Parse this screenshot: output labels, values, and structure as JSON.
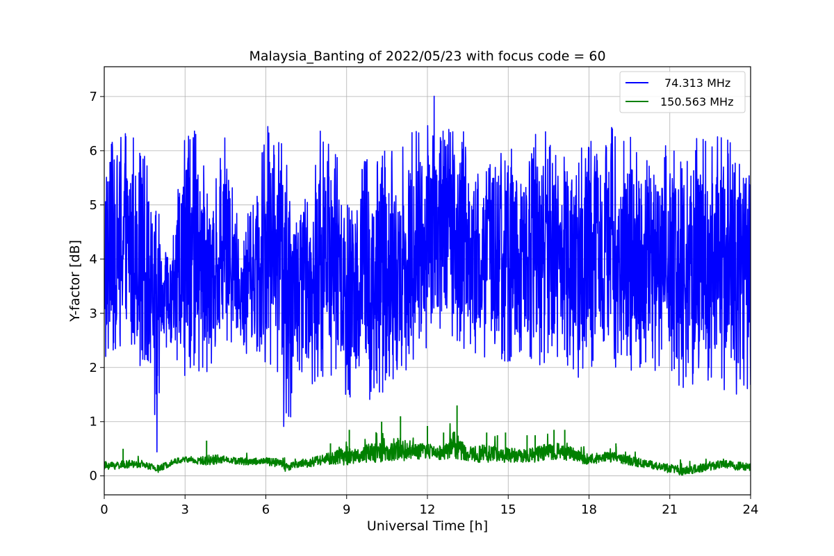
{
  "chart_data": {
    "type": "line",
    "title": "Malaysia_Banting of 2022/05/23 with focus code = 60",
    "xlabel": "Universal Time [h]",
    "ylabel": "Y-factor [dB]",
    "xlim": [
      0,
      24
    ],
    "ylim": [
      -0.35,
      7.55
    ],
    "xticks": [
      0,
      3,
      6,
      9,
      12,
      15,
      18,
      21,
      24
    ],
    "yticks": [
      0,
      1,
      2,
      3,
      4,
      5,
      6,
      7
    ],
    "grid": true,
    "legend_position": "top-right",
    "series": [
      {
        "name": "74.313 MHz",
        "color": "#0000ff",
        "envelope": {
          "x": [
            0,
            0.5,
            1.0,
            1.5,
            1.8,
            1.95,
            2.1,
            2.5,
            3.0,
            3.5,
            3.9,
            4.5,
            5.0,
            5.5,
            6.0,
            6.5,
            6.7,
            6.9,
            7.0,
            7.5,
            8.0,
            8.5,
            9.0,
            9.5,
            10.0,
            10.5,
            11.0,
            11.5,
            12.0,
            12.3,
            12.5,
            13.0,
            13.5,
            14.0,
            14.5,
            15.0,
            15.5,
            16.0,
            16.5,
            17.0,
            17.5,
            18.0,
            18.5,
            19.0,
            19.5,
            20.0,
            20.5,
            21.0,
            21.5,
            22.0,
            22.5,
            23.0,
            23.5,
            24.0
          ],
          "min": [
            2.0,
            2.3,
            2.1,
            2.0,
            1.6,
            0.0,
            2.4,
            2.1,
            1.8,
            1.9,
            1.8,
            2.5,
            2.3,
            2.2,
            2.0,
            1.9,
            0.4,
            0.4,
            2.2,
            1.7,
            1.6,
            1.8,
            1.3,
            1.4,
            1.3,
            1.6,
            1.8,
            1.9,
            2.1,
            2.3,
            2.4,
            2.4,
            2.3,
            2.1,
            2.2,
            2.0,
            2.1,
            2.0,
            2.0,
            2.1,
            1.8,
            1.7,
            1.9,
            2.0,
            1.9,
            1.8,
            1.8,
            1.7,
            1.4,
            1.6,
            1.7,
            1.5,
            1.5,
            1.6
          ],
          "max": [
            6.2,
            6.5,
            6.5,
            5.9,
            5.3,
            5.6,
            4.3,
            4.3,
            6.4,
            6.6,
            5.0,
            6.3,
            4.6,
            5.0,
            6.5,
            6.2,
            6.3,
            5.7,
            5.0,
            5.2,
            6.4,
            6.0,
            5.8,
            5.8,
            6.0,
            6.1,
            6.0,
            6.4,
            6.6,
            7.2,
            6.9,
            7.1,
            6.0,
            5.8,
            6.2,
            6.4,
            5.7,
            6.3,
            6.4,
            6.2,
            6.1,
            6.3,
            6.1,
            6.6,
            6.4,
            6.0,
            6.2,
            6.2,
            5.9,
            6.4,
            6.1,
            6.5,
            5.8,
            5.7
          ]
        }
      },
      {
        "name": "150.563 MHz",
        "color": "#008000",
        "envelope": {
          "x": [
            0,
            1.0,
            1.5,
            2.0,
            2.5,
            3.0,
            3.5,
            4.0,
            4.5,
            5.0,
            5.5,
            6.0,
            6.5,
            6.8,
            7.0,
            7.5,
            8.0,
            8.5,
            9.0,
            9.5,
            10.0,
            10.5,
            11.0,
            11.5,
            12.0,
            12.5,
            13.0,
            13.5,
            14.0,
            14.5,
            15.0,
            15.5,
            16.0,
            16.5,
            17.0,
            17.5,
            18.0,
            18.5,
            19.0,
            19.5,
            20.0,
            20.5,
            21.0,
            21.5,
            22.0,
            22.5,
            23.0,
            23.5,
            24.0
          ],
          "min": [
            0.1,
            0.15,
            0.15,
            0.05,
            0.2,
            0.25,
            0.2,
            0.2,
            0.25,
            0.2,
            0.2,
            0.2,
            0.15,
            0.05,
            0.15,
            0.15,
            0.2,
            0.2,
            0.2,
            0.25,
            0.25,
            0.25,
            0.25,
            0.3,
            0.3,
            0.3,
            0.3,
            0.25,
            0.25,
            0.25,
            0.25,
            0.25,
            0.25,
            0.3,
            0.3,
            0.25,
            0.2,
            0.25,
            0.25,
            0.2,
            0.15,
            0.1,
            0.05,
            0.0,
            0.05,
            0.1,
            0.15,
            0.1,
            0.1
          ],
          "max": [
            0.4,
            0.4,
            0.35,
            0.3,
            0.4,
            0.45,
            0.45,
            0.6,
            0.45,
            0.45,
            0.45,
            0.45,
            0.45,
            0.4,
            0.35,
            0.45,
            0.55,
            0.65,
            0.85,
            0.7,
            1.0,
            0.8,
            1.1,
            0.8,
            0.9,
            0.75,
            1.3,
            0.75,
            0.85,
            0.8,
            0.75,
            0.7,
            0.75,
            0.85,
            0.85,
            0.7,
            0.55,
            0.6,
            0.6,
            0.5,
            0.45,
            0.4,
            0.35,
            0.3,
            0.35,
            0.4,
            0.4,
            0.4,
            0.35
          ]
        },
        "spikes": [
          {
            "x": 0.7,
            "y": 0.5
          },
          {
            "x": 3.8,
            "y": 0.65
          },
          {
            "x": 8.4,
            "y": 0.6
          },
          {
            "x": 9.1,
            "y": 0.85
          },
          {
            "x": 10.3,
            "y": 1.0
          },
          {
            "x": 10.9,
            "y": 0.7
          },
          {
            "x": 11.0,
            "y": 1.1
          },
          {
            "x": 12.0,
            "y": 0.92
          },
          {
            "x": 12.6,
            "y": 0.8
          },
          {
            "x": 13.1,
            "y": 1.3
          },
          {
            "x": 14.2,
            "y": 0.8
          },
          {
            "x": 14.6,
            "y": 0.75
          },
          {
            "x": 14.9,
            "y": 0.8
          },
          {
            "x": 15.7,
            "y": 0.75
          },
          {
            "x": 16.0,
            "y": 0.75
          },
          {
            "x": 16.7,
            "y": 0.85
          },
          {
            "x": 17.1,
            "y": 0.85
          },
          {
            "x": 19.0,
            "y": 0.6
          }
        ]
      }
    ]
  }
}
